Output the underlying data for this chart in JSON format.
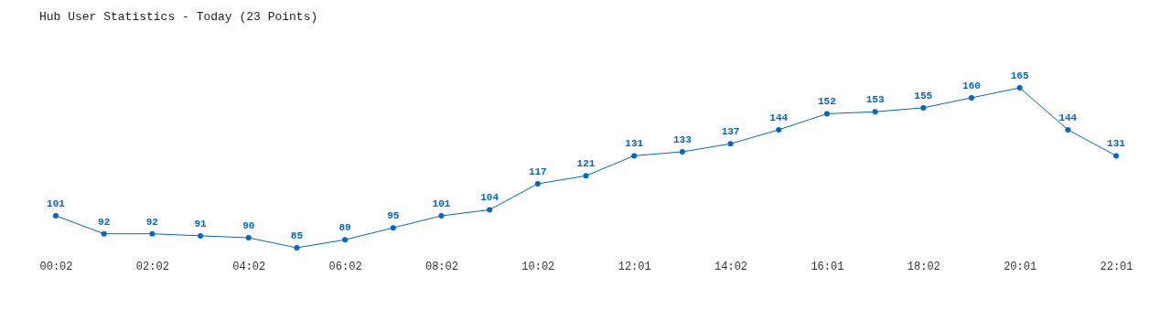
{
  "chart_data": {
    "type": "line",
    "title": "Hub User Statistics - Today (23 Points)",
    "categories": [
      "00:02",
      null,
      "02:02",
      null,
      "04:02",
      null,
      "06:02",
      null,
      "08:02",
      null,
      "10:02",
      null,
      "12:01",
      null,
      "14:02",
      null,
      "16:01",
      null,
      "18:02",
      null,
      "20:01",
      null,
      "22:01"
    ],
    "values": [
      101,
      92,
      92,
      91,
      90,
      85,
      89,
      95,
      101,
      104,
      117,
      121,
      131,
      133,
      137,
      144,
      152,
      153,
      155,
      160,
      165,
      144,
      131
    ],
    "color": "#0066cc",
    "data_labels": true,
    "marker": "circle",
    "tick_labels": "x"
  }
}
